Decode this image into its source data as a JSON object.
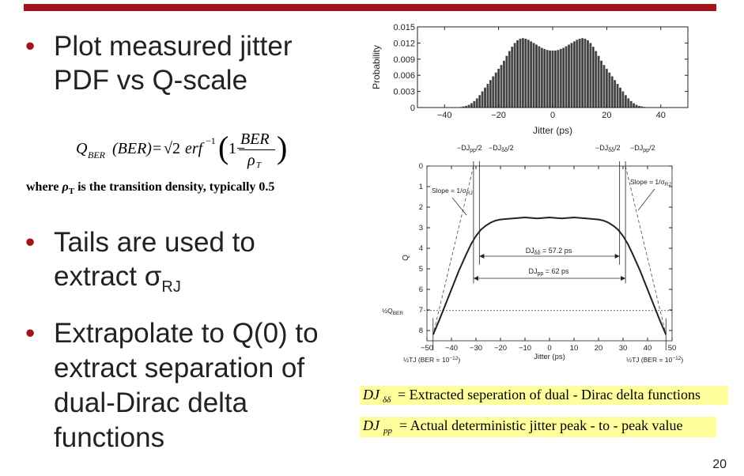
{
  "slide": {
    "page_number": "20",
    "bullets": [
      {
        "lines": [
          "Plot measured jitter",
          "PDF vs Q-scale"
        ]
      },
      {
        "lines": [
          "Tails are used to",
          "extract σ"
        ],
        "sub": "RJ"
      },
      {
        "lines": [
          "Extrapolate to Q(0) to",
          "extract separation of",
          "dual-Dirac delta",
          "functions"
        ]
      }
    ],
    "formula": {
      "q": "Q",
      "q_sub": "BER",
      "arg": "(BER)",
      "eq": "=",
      "sqrt": "√2",
      "erf": "erf",
      "inv": "−1",
      "one_minus": "1−",
      "num": "BER",
      "den": "ρ",
      "den_sub": "T"
    },
    "where_note": {
      "pre": "where ",
      "rho": "ρ",
      "rho_sub": "T",
      "post": " is the transition density, typically 0.5"
    },
    "definitions": [
      {
        "sym": "DJ",
        "sub": "δδ",
        "text": "= Extracted seperation of dual - Dirac delta functions"
      },
      {
        "sym": "DJ",
        "sub": "pp",
        "text": "= Actual deterministic jitter peak - to - peak value"
      }
    ]
  },
  "chart_data": [
    {
      "type": "bar",
      "xlabel": "Jitter (ps)",
      "ylabel": "Probability",
      "xlim": [
        -50,
        50
      ],
      "ylim": [
        0,
        0.015
      ],
      "xticks": [
        "−40",
        "−20",
        "0",
        "20",
        "40"
      ],
      "xtick_values": [
        -40,
        -20,
        0,
        20,
        40
      ],
      "yticks": [
        "0",
        "0.003",
        "0.006",
        "0.009",
        "0.012",
        "0.015"
      ],
      "ytick_values": [
        0,
        0.003,
        0.006,
        0.009,
        0.012,
        0.015
      ],
      "x": [
        -34,
        -33,
        -32,
        -31,
        -30,
        -29,
        -28,
        -27,
        -26,
        -25,
        -24,
        -23,
        -22,
        -21,
        -20,
        -19,
        -18,
        -17,
        -16,
        -15,
        -14,
        -13,
        -12,
        -11,
        -10,
        -9,
        -8,
        -7,
        -6,
        -5,
        -4,
        -3,
        -2,
        -1,
        0,
        1,
        2,
        3,
        4,
        5,
        6,
        7,
        8,
        9,
        10,
        11,
        12,
        13,
        14,
        15,
        16,
        17,
        18,
        19,
        20,
        21,
        22,
        23,
        24,
        25,
        26,
        27,
        28,
        29,
        30,
        31,
        32,
        33,
        34
      ],
      "values": [
        0.0001,
        0.0002,
        0.0003,
        0.0005,
        0.0008,
        0.0012,
        0.0017,
        0.0023,
        0.003,
        0.0037,
        0.0044,
        0.0051,
        0.0058,
        0.0065,
        0.0072,
        0.0079,
        0.0087,
        0.0096,
        0.0105,
        0.0113,
        0.012,
        0.0125,
        0.0128,
        0.0129,
        0.0128,
        0.0126,
        0.0123,
        0.012,
        0.0117,
        0.0114,
        0.0111,
        0.0109,
        0.0107,
        0.0106,
        0.0106,
        0.0106,
        0.0107,
        0.0109,
        0.0111,
        0.0114,
        0.0117,
        0.012,
        0.0123,
        0.0126,
        0.0128,
        0.0129,
        0.0128,
        0.0125,
        0.012,
        0.0113,
        0.0105,
        0.0096,
        0.0087,
        0.0079,
        0.0072,
        0.0065,
        0.0058,
        0.0051,
        0.0044,
        0.0037,
        0.003,
        0.0023,
        0.0017,
        0.0012,
        0.0008,
        0.0005,
        0.0003,
        0.0002,
        0.0001
      ]
    },
    {
      "type": "line",
      "xlabel": "Jitter (ps)",
      "ylabel": "Q",
      "xlim": [
        -50,
        50
      ],
      "ylim": [
        0,
        8.5
      ],
      "y_inverted": true,
      "xticks": [
        "−50",
        "−40",
        "−30",
        "−20",
        "−10",
        "0",
        "10",
        "20",
        "30",
        "40",
        "50"
      ],
      "xtick_values": [
        -50,
        -40,
        -30,
        -20,
        -10,
        0,
        10,
        20,
        30,
        40,
        50
      ],
      "yticks": [
        "0",
        "1",
        "2",
        "3",
        "4",
        "5",
        "6",
        "7",
        "8"
      ],
      "ytick_values": [
        0,
        1,
        2,
        3,
        4,
        5,
        6,
        7,
        8
      ],
      "series": [
        {
          "x": [
            -47.5,
            -45,
            -42,
            -40,
            -37,
            -34,
            -32,
            -30,
            -28,
            -26,
            -24,
            -22,
            -20,
            -15,
            -10,
            -5,
            0,
            5,
            10,
            15,
            20,
            22,
            24,
            26,
            28,
            30,
            32,
            34,
            37,
            40,
            42,
            45,
            47.5
          ],
          "y": [
            8.2,
            7.5,
            6.6,
            6.0,
            5.1,
            4.3,
            3.8,
            3.4,
            3.1,
            2.9,
            2.75,
            2.65,
            2.6,
            2.55,
            2.5,
            2.55,
            2.5,
            2.55,
            2.5,
            2.55,
            2.6,
            2.65,
            2.75,
            2.9,
            3.1,
            3.4,
            3.8,
            4.3,
            5.1,
            6.0,
            6.6,
            7.5,
            8.2
          ]
        }
      ],
      "annotations": {
        "djpp_left": "−DJ",
        "djpp_left_sub": "pp",
        "djpp_left_tail": "/2",
        "djdd_left": "−DJ",
        "djdd_left_sub": "δδ",
        "djdd_left_tail": "/2",
        "djdd_right": "−DJ",
        "djdd_right_sub": "δδ",
        "djdd_right_tail": "/2",
        "djpp_right": "−DJ",
        "djpp_right_sub": "pp",
        "djpp_right_tail": "/2",
        "slope_left": "Slope = 1/σ",
        "slope_left_sub": "RJ",
        "slope_right": "Slope = 1/σ",
        "slope_right_sub": "RJ",
        "djdd_arrow": "DJ",
        "djdd_arrow_sub": "δδ",
        "djdd_arrow_val": " = 57.2 ps",
        "djpp_arrow": "DJ",
        "djpp_arrow_sub": "pp",
        "djpp_arrow_val": " = 62 ps",
        "half_q": "½Q",
        "half_q_sub": "BER",
        "tj_left": "½TJ (BER = 10",
        "tj_left_sup": "−12",
        "tj_left_tail": ")",
        "tj_right": "½TJ (BER = 10",
        "tj_right_sup": "−12",
        "tj_right_tail": ")"
      },
      "markers": {
        "dj_dd_half": 28.6,
        "dj_pp_half": 31,
        "half_q_level": 7.03,
        "tj_half": 47.5
      }
    }
  ]
}
